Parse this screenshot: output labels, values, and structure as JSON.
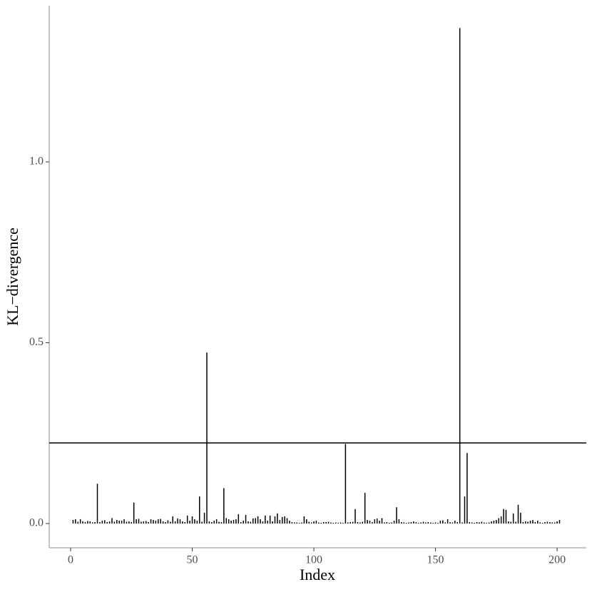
{
  "chart_data": {
    "type": "spike",
    "xlabel": "Index",
    "ylabel": "KL−divergence",
    "x": [
      1,
      2,
      3,
      4,
      5,
      6,
      7,
      8,
      9,
      10,
      11,
      12,
      13,
      14,
      15,
      16,
      17,
      18,
      19,
      20,
      21,
      22,
      23,
      24,
      25,
      26,
      27,
      28,
      29,
      30,
      31,
      32,
      33,
      34,
      35,
      36,
      37,
      38,
      39,
      40,
      41,
      42,
      43,
      44,
      45,
      46,
      47,
      48,
      49,
      50,
      51,
      52,
      53,
      54,
      55,
      56,
      57,
      58,
      59,
      60,
      61,
      62,
      63,
      64,
      65,
      66,
      67,
      68,
      69,
      70,
      71,
      72,
      73,
      74,
      75,
      76,
      77,
      78,
      79,
      80,
      81,
      82,
      83,
      84,
      85,
      86,
      87,
      88,
      89,
      90,
      91,
      92,
      93,
      94,
      95,
      96,
      97,
      98,
      99,
      100,
      101,
      102,
      103,
      104,
      105,
      106,
      107,
      108,
      109,
      110,
      111,
      112,
      113,
      114,
      115,
      116,
      117,
      118,
      119,
      120,
      121,
      122,
      123,
      124,
      125,
      126,
      127,
      128,
      129,
      130,
      131,
      132,
      133,
      134,
      135,
      136,
      137,
      138,
      139,
      140,
      141,
      142,
      143,
      144,
      145,
      146,
      147,
      148,
      149,
      150,
      151,
      152,
      153,
      154,
      155,
      156,
      157,
      158,
      159,
      160,
      161,
      162,
      163,
      164,
      165,
      166,
      167,
      168,
      169,
      170,
      171,
      172,
      173,
      174,
      175,
      176,
      177,
      178,
      179,
      180,
      181,
      182,
      183,
      184,
      185,
      186,
      187,
      188,
      189,
      190,
      191,
      192,
      193,
      194,
      195,
      196,
      197,
      198,
      199,
      200,
      201
    ],
    "values": [
      0.01,
      0.012,
      0.005,
      0.012,
      0.006,
      0.004,
      0.007,
      0.006,
      0.003,
      0.004,
      0.11,
      0.004,
      0.008,
      0.009,
      0.004,
      0.006,
      0.015,
      0.005,
      0.01,
      0.008,
      0.008,
      0.012,
      0.005,
      0.006,
      0.004,
      0.058,
      0.012,
      0.013,
      0.005,
      0.006,
      0.007,
      0.004,
      0.012,
      0.01,
      0.008,
      0.012,
      0.013,
      0.006,
      0.004,
      0.009,
      0.005,
      0.02,
      0.006,
      0.014,
      0.012,
      0.006,
      0.004,
      0.022,
      0.008,
      0.02,
      0.012,
      0.008,
      0.075,
      0.005,
      0.03,
      0.473,
      0.006,
      0.004,
      0.008,
      0.012,
      0.005,
      0.004,
      0.098,
      0.015,
      0.012,
      0.008,
      0.01,
      0.012,
      0.026,
      0.004,
      0.008,
      0.024,
      0.006,
      0.005,
      0.014,
      0.015,
      0.02,
      0.012,
      0.006,
      0.022,
      0.008,
      0.022,
      0.006,
      0.02,
      0.028,
      0.01,
      0.018,
      0.02,
      0.015,
      0.008,
      0.004,
      0.003,
      0.003,
      0.002,
      0.003,
      0.02,
      0.012,
      0.005,
      0.003,
      0.006,
      0.008,
      0.003,
      0.002,
      0.004,
      0.004,
      0.005,
      0.003,
      0.002,
      0.003,
      0.002,
      0.003,
      0.002,
      0.22,
      0.003,
      0.004,
      0.005,
      0.04,
      0.004,
      0.003,
      0.005,
      0.085,
      0.01,
      0.008,
      0.004,
      0.012,
      0.014,
      0.008,
      0.015,
      0.003,
      0.004,
      0.002,
      0.003,
      0.008,
      0.045,
      0.012,
      0.004,
      0.003,
      0.002,
      0.003,
      0.004,
      0.006,
      0.004,
      0.002,
      0.003,
      0.005,
      0.003,
      0.004,
      0.003,
      0.002,
      0.003,
      0.002,
      0.008,
      0.009,
      0.003,
      0.012,
      0.004,
      0.003,
      0.008,
      0.004,
      1.37,
      0.003,
      0.075,
      0.195,
      0.004,
      0.003,
      0.002,
      0.004,
      0.003,
      0.005,
      0.003,
      0.002,
      0.003,
      0.006,
      0.008,
      0.01,
      0.015,
      0.02,
      0.04,
      0.038,
      0.006,
      0.005,
      0.028,
      0.005,
      0.052,
      0.03,
      0.004,
      0.006,
      0.005,
      0.008,
      0.01,
      0.004,
      0.008,
      0.003,
      0.002,
      0.004,
      0.005,
      0.004,
      0.003,
      0.003,
      0.006,
      0.01
    ],
    "color": "#000000",
    "hline": 0.223,
    "xlim": [
      -8.8,
      212
    ],
    "xticks": [
      0,
      50,
      100,
      150,
      200
    ],
    "ylim": [
      -0.067,
      1.432
    ],
    "yticks": [
      {
        "value": 0,
        "label": "0.0"
      },
      {
        "value": 0.5,
        "label": "0.5"
      },
      {
        "value": 1,
        "label": "1.0"
      }
    ]
  }
}
